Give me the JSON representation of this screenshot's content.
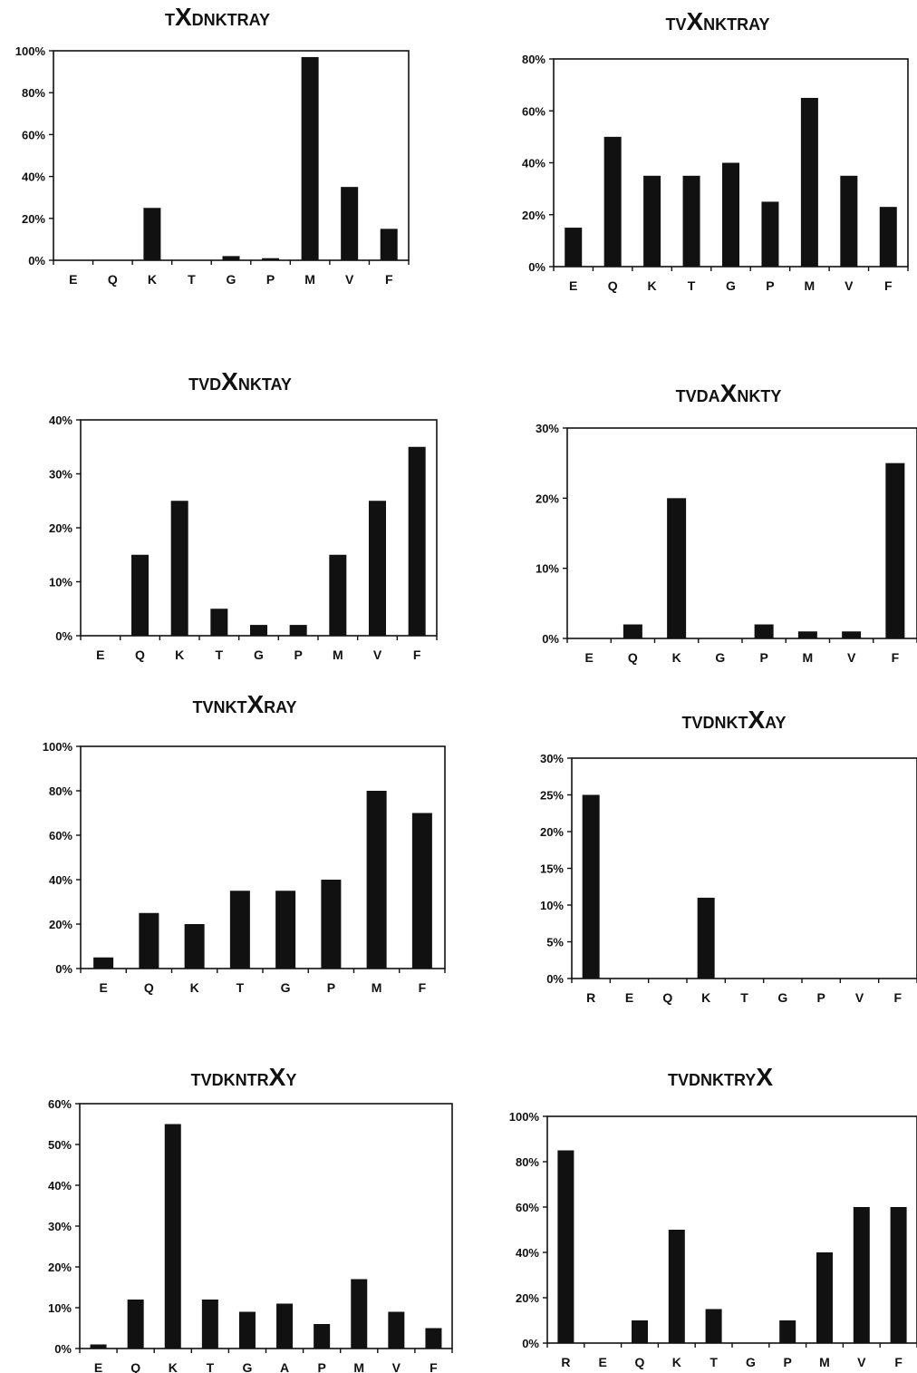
{
  "chart_data": [
    {
      "type": "bar",
      "title": {
        "pre": "T",
        "x": "X",
        "post": "DNKTRAY"
      },
      "categories": [
        "E",
        "Q",
        "K",
        "T",
        "G",
        "P",
        "M",
        "V",
        "F"
      ],
      "values": [
        0,
        0,
        25,
        0,
        2,
        1,
        97,
        35,
        15
      ],
      "yticks": [
        "0%",
        "20%",
        "40%",
        "60%",
        "80%",
        "100%"
      ],
      "ylim": [
        0,
        100
      ]
    },
    {
      "type": "bar",
      "title": {
        "pre": "TV",
        "x": "X",
        "post": "NKTRAY"
      },
      "categories": [
        "E",
        "Q",
        "K",
        "T",
        "G",
        "P",
        "M",
        "V",
        "F"
      ],
      "values": [
        15,
        50,
        35,
        35,
        40,
        25,
        65,
        35,
        23
      ],
      "yticks": [
        "0%",
        "20%",
        "40%",
        "60%",
        "80%"
      ],
      "ylim": [
        0,
        80
      ]
    },
    {
      "type": "bar",
      "title": {
        "pre": "TVD",
        "x": "X",
        "post": "NKTAY"
      },
      "categories": [
        "E",
        "Q",
        "K",
        "T",
        "G",
        "P",
        "M",
        "V",
        "F"
      ],
      "values": [
        0,
        15,
        25,
        5,
        2,
        2,
        15,
        25,
        35
      ],
      "yticks": [
        "0%",
        "10%",
        "20%",
        "30%",
        "40%"
      ],
      "ylim": [
        0,
        40
      ]
    },
    {
      "type": "bar",
      "title": {
        "pre": "TVDA",
        "x": "X",
        "post": "NKTY"
      },
      "categories": [
        "E",
        "Q",
        "K",
        "G",
        "P",
        "M",
        "V",
        "F"
      ],
      "values": [
        0,
        2,
        20,
        0,
        2,
        1,
        1,
        25
      ],
      "yticks": [
        "0%",
        "10%",
        "20%",
        "30%"
      ],
      "ylim": [
        0,
        30
      ]
    },
    {
      "type": "bar",
      "title": {
        "pre": "TVNKT",
        "x": "X",
        "post": "RAY"
      },
      "categories": [
        "E",
        "Q",
        "K",
        "T",
        "G",
        "P",
        "M",
        "F"
      ],
      "values": [
        5,
        25,
        20,
        35,
        35,
        40,
        80,
        70
      ],
      "yticks": [
        "0%",
        "20%",
        "40%",
        "60%",
        "80%",
        "100%"
      ],
      "ylim": [
        0,
        100
      ]
    },
    {
      "type": "bar",
      "title": {
        "pre": "TVDNKT",
        "x": "X",
        "post": "AY"
      },
      "categories": [
        "R",
        "E",
        "Q",
        "K",
        "T",
        "G",
        "P",
        "V",
        "F"
      ],
      "values": [
        25,
        0,
        0,
        11,
        0,
        0,
        0,
        0,
        0
      ],
      "yticks": [
        "0%",
        "5%",
        "10%",
        "15%",
        "20%",
        "25%",
        "30%"
      ],
      "ylim": [
        0,
        30
      ]
    },
    {
      "type": "bar",
      "title": {
        "pre": "TVDKNTR",
        "x": "X",
        "post": "Y"
      },
      "categories": [
        "E",
        "Q",
        "K",
        "T",
        "G",
        "A",
        "P",
        "M",
        "V",
        "F"
      ],
      "values": [
        1,
        12,
        55,
        12,
        9,
        11,
        6,
        17,
        9,
        5
      ],
      "yticks": [
        "0%",
        "10%",
        "20%",
        "30%",
        "40%",
        "50%",
        "60%"
      ],
      "ylim": [
        0,
        60
      ]
    },
    {
      "type": "bar",
      "title": {
        "pre": "TVDNKTRY",
        "x": "X",
        "post": ""
      },
      "categories": [
        "R",
        "E",
        "Q",
        "K",
        "T",
        "G",
        "P",
        "M",
        "V",
        "F"
      ],
      "values": [
        85,
        0,
        10,
        50,
        15,
        0,
        10,
        40,
        60,
        60
      ],
      "yticks": [
        "0%",
        "20%",
        "40%",
        "60%",
        "80%",
        "100%"
      ],
      "ylim": [
        0,
        100
      ]
    }
  ]
}
